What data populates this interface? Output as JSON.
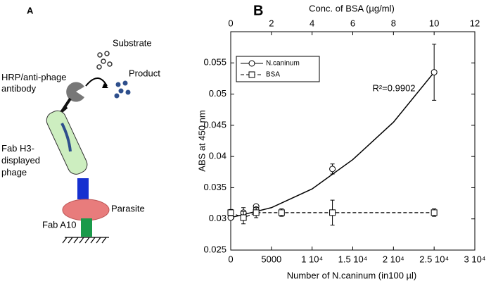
{
  "panel_a": {
    "label": "A",
    "substrate": "Substrate",
    "product": "Product",
    "antibody": [
      "HRP/anti-phage",
      "antibody"
    ],
    "phage": [
      "Fab H3-",
      "displayed",
      "phage"
    ],
    "parasite": "Parasite",
    "fab": "Fab A10"
  },
  "chart_data": {
    "type": "scatter",
    "panel_label": "B",
    "y_label": "ABS at 450 nm",
    "x_label": "Number of N.caninum (in100 µl)",
    "x2_label": "Conc. of BSA (µg/ml)",
    "annotation": "R²=0.9902",
    "xlim": [
      0,
      30000
    ],
    "xticks": [
      0,
      5000,
      {
        "value": 10000,
        "label": "1 10⁴"
      },
      {
        "value": 15000,
        "label": "1.5 10⁴"
      },
      {
        "value": 20000,
        "label": "2 10⁴"
      },
      {
        "value": 25000,
        "label": "2.5 10⁴"
      },
      {
        "value": 30000,
        "label": "3 10⁴"
      }
    ],
    "x2lim": [
      0,
      12
    ],
    "x2ticks": [
      0,
      2,
      4,
      6,
      8,
      10,
      12
    ],
    "ylim": [
      0.025,
      0.06
    ],
    "yticks": [
      0.025,
      0.03,
      0.035,
      0.04,
      0.045,
      0.05,
      0.055
    ],
    "legend": "upper left",
    "series": [
      {
        "name": "N.caninum",
        "color": "#000000",
        "marker": "circle",
        "axis": "x",
        "x": [
          0,
          1563,
          3125,
          3125,
          12500,
          25000
        ],
        "values": [
          0.0302,
          0.031,
          0.032,
          0.0315,
          0.038,
          0.0535
        ],
        "errors": [
          0.0003,
          0.0008,
          0.0003,
          0.0003,
          0.0008,
          0.0045
        ],
        "fit": {
          "x": [
            0,
            5000,
            10000,
            15000,
            20000,
            25000
          ],
          "values": [
            0.0302,
            0.0318,
            0.0348,
            0.0395,
            0.0455,
            0.0535
          ]
        }
      },
      {
        "name": "BSA",
        "color": "#000000",
        "marker": "square",
        "dashed": true,
        "axis": "x2",
        "x": [
          0,
          0.625,
          1.25,
          2.5,
          5,
          10
        ],
        "values": [
          0.031,
          0.0302,
          0.031,
          0.031,
          0.031,
          0.031
        ],
        "errors": [
          0.0005,
          0.001,
          0.0008,
          0.0006,
          0.002,
          0.0006
        ]
      }
    ]
  }
}
